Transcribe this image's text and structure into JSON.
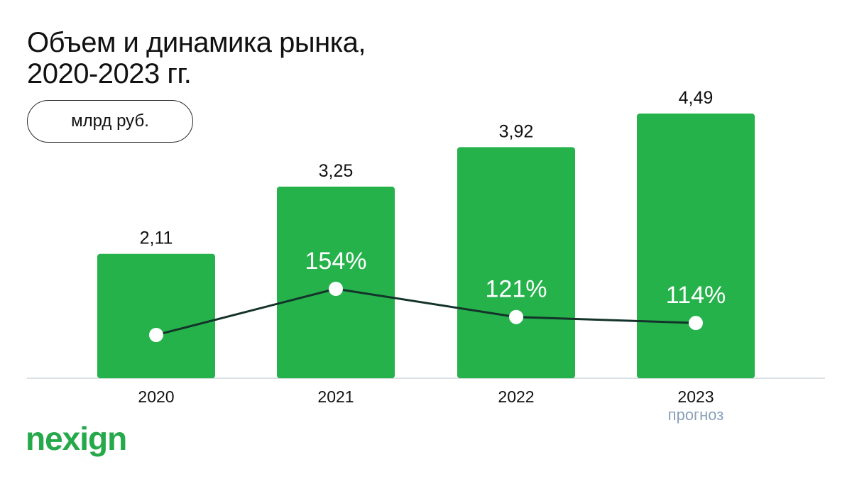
{
  "header": {
    "title_line1": "Объем и динамика рынка,",
    "title_line2": "2020-2023 гг.",
    "unit": "млрд руб."
  },
  "brand": {
    "logo_text": "nexign"
  },
  "colors": {
    "bar": "#25b24b",
    "line": "#14332a",
    "point": "#ffffff",
    "axis": "#cfd6dc",
    "note": "#8aa0b8",
    "logo": "#25a94a"
  },
  "chart_data": {
    "type": "bar",
    "categories": [
      "2020",
      "2021",
      "2022",
      "2023"
    ],
    "category_notes": [
      "",
      "",
      "",
      "прогноз"
    ],
    "values": [
      2.11,
      3.25,
      3.92,
      4.49
    ],
    "value_labels": [
      "2,11",
      "3,25",
      "3,92",
      "4,49"
    ],
    "growth_labels": [
      "",
      "154%",
      "121%",
      "114%"
    ],
    "growth_values": [
      null,
      154,
      121,
      114
    ],
    "ylim": [
      0,
      4.49
    ],
    "grid": false,
    "legend": "none"
  }
}
